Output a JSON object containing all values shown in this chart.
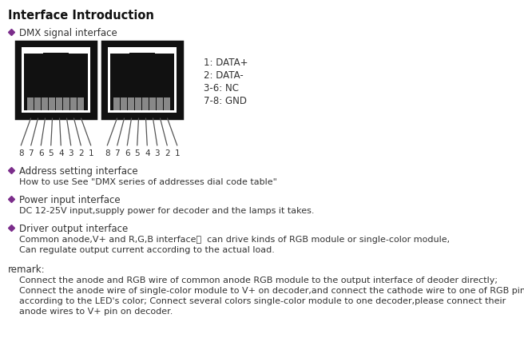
{
  "title": "Interface Introduction",
  "bullet_color": "#7B2D8B",
  "text_color": "#333333",
  "bg_color": "#ffffff",
  "title_fontsize": 10.5,
  "body_fontsize": 8.5,
  "dmx_header": "DMX signal interface",
  "signal_labels": [
    "1: DATA+",
    "2: DATA-",
    "3-6: NC",
    "7-8: GND"
  ],
  "pin_labels_left": [
    "8",
    "7",
    "6",
    "5",
    "4",
    "3",
    "2",
    "1"
  ],
  "pin_labels_right": [
    "8",
    "7",
    "6",
    "5",
    "4",
    "3",
    "2",
    "1"
  ],
  "sections": [
    {
      "header": "Address setting interface",
      "body": [
        "How to use See \"DMX series of addresses dial code table\""
      ]
    },
    {
      "header": "Power input interface",
      "body": [
        "DC 12-25V input,supply power for decoder and the lamps it takes."
      ]
    },
    {
      "header": "Driver output interface",
      "body": [
        "Common anode,V+ and R,G,B interface，  can drive kinds of RGB module or single-color module,",
        "Can regulate output current according to the actual load."
      ]
    }
  ],
  "remark_header": "remark:",
  "remark_lines": [
    "    Connect the anode and RGB wire of common anode RGB module to the output interface of deoder directly;",
    "    Connect the anode wire of single-color module to V+ on decoder,and connect the cathode wire to one of RGB pin",
    "    according to the LED's color; Connect several colors single-color module to one decoder,please connect their",
    "    anode wires to V+ pin on decoder."
  ]
}
